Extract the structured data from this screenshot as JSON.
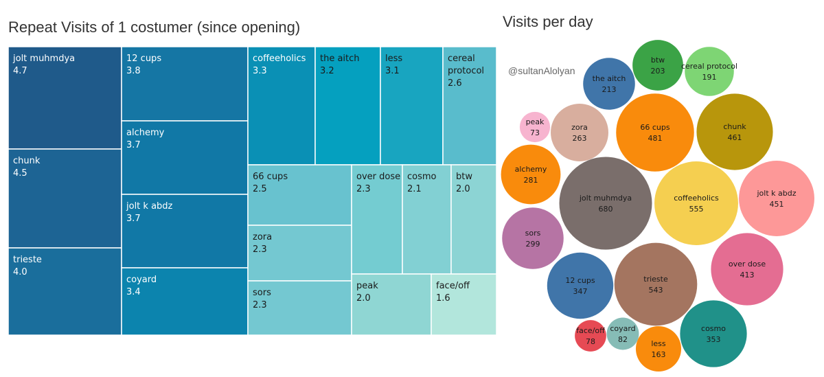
{
  "chart_data": [
    {
      "type": "treemap",
      "title": "Repeat Visits of 1 costumer (since opening)",
      "items": [
        {
          "name": "jolt muhmdya",
          "value": 4.7,
          "color": "#1f5a8a",
          "label_color": "#ffffff"
        },
        {
          "name": "chunk",
          "value": 4.5,
          "color": "#1d6494",
          "label_color": "#ffffff"
        },
        {
          "name": "trieste",
          "value": 4.0,
          "color": "#1a6e9c",
          "label_color": "#ffffff"
        },
        {
          "name": "12 cups",
          "value": 3.8,
          "color": "#1576a4",
          "label_color": "#ffffff"
        },
        {
          "name": "alchemy",
          "value": 3.7,
          "color": "#1178a6",
          "label_color": "#ffffff"
        },
        {
          "name": "jolt k abdz",
          "value": 3.7,
          "color": "#1178a6",
          "label_color": "#ffffff"
        },
        {
          "name": "coyard",
          "value": 3.4,
          "color": "#0c84ae",
          "label_color": "#ffffff"
        },
        {
          "name": "coffeeholics",
          "value": 3.3,
          "color": "#0a90b5",
          "label_color": "#ffffff"
        },
        {
          "name": "the aitch",
          "value": 3.2,
          "color": "#05a0bf",
          "label_color": "#1a1a1a"
        },
        {
          "name": "less",
          "value": 3.1,
          "color": "#18a5c0",
          "label_color": "#1a1a1a"
        },
        {
          "name": "cereal protocol",
          "value": 2.6,
          "color": "#59bccc",
          "label_color": "#1a1a1a"
        },
        {
          "name": "66 cups",
          "value": 2.5,
          "color": "#68c2cf",
          "label_color": "#1a1a1a"
        },
        {
          "name": "zora",
          "value": 2.3,
          "color": "#74c8d1",
          "label_color": "#1a1a1a"
        },
        {
          "name": "sors",
          "value": 2.3,
          "color": "#74c8d1",
          "label_color": "#1a1a1a"
        },
        {
          "name": "over dose",
          "value": 2.3,
          "color": "#74ccd1",
          "label_color": "#1a1a1a"
        },
        {
          "name": "cosmo",
          "value": 2.1,
          "color": "#82d0d3",
          "label_color": "#1a1a1a"
        },
        {
          "name": "btw",
          "value": 2.0,
          "color": "#8cd4d4",
          "label_color": "#1a1a1a"
        },
        {
          "name": "peak",
          "value": 2.0,
          "color": "#8fd6d3",
          "label_color": "#1a1a1a"
        },
        {
          "name": "face/off",
          "value": 1.6,
          "color": "#b2e6dc",
          "label_color": "#1a1a1a"
        }
      ]
    },
    {
      "type": "bubble",
      "title": "Visits per day",
      "annotation": "@sultanAlolyan",
      "items": [
        {
          "name": "jolt muhmdya",
          "value": 680,
          "color": "#7a6e6b"
        },
        {
          "name": "coffeeholics",
          "value": 555,
          "color": "#f5cf50"
        },
        {
          "name": "trieste",
          "value": 543,
          "color": "#a47560"
        },
        {
          "name": "66 cups",
          "value": 481,
          "color": "#f98b0c"
        },
        {
          "name": "chunk",
          "value": 461,
          "color": "#b8960c"
        },
        {
          "name": "jolt k abdz",
          "value": 451,
          "color": "#fd9898"
        },
        {
          "name": "over dose",
          "value": 413,
          "color": "#e46d92"
        },
        {
          "name": "cosmo",
          "value": 353,
          "color": "#209189"
        },
        {
          "name": "12 cups",
          "value": 347,
          "color": "#4075a9"
        },
        {
          "name": "sors",
          "value": 299,
          "color": "#b674a4"
        },
        {
          "name": "alchemy",
          "value": 281,
          "color": "#f98b0c"
        },
        {
          "name": "zora",
          "value": 263,
          "color": "#d8ae9e"
        },
        {
          "name": "the aitch",
          "value": 213,
          "color": "#4075a9"
        },
        {
          "name": "btw",
          "value": 203,
          "color": "#3ba346"
        },
        {
          "name": "cereal protocol",
          "value": 191,
          "color": "#7ed574"
        },
        {
          "name": "less",
          "value": 163,
          "color": "#f98b0c"
        },
        {
          "name": "coyard",
          "value": 82,
          "color": "#86bcb6"
        },
        {
          "name": "face/off",
          "value": 78,
          "color": "#e64a54"
        },
        {
          "name": "peak",
          "value": 73,
          "color": "#f7b4cf"
        }
      ]
    }
  ]
}
